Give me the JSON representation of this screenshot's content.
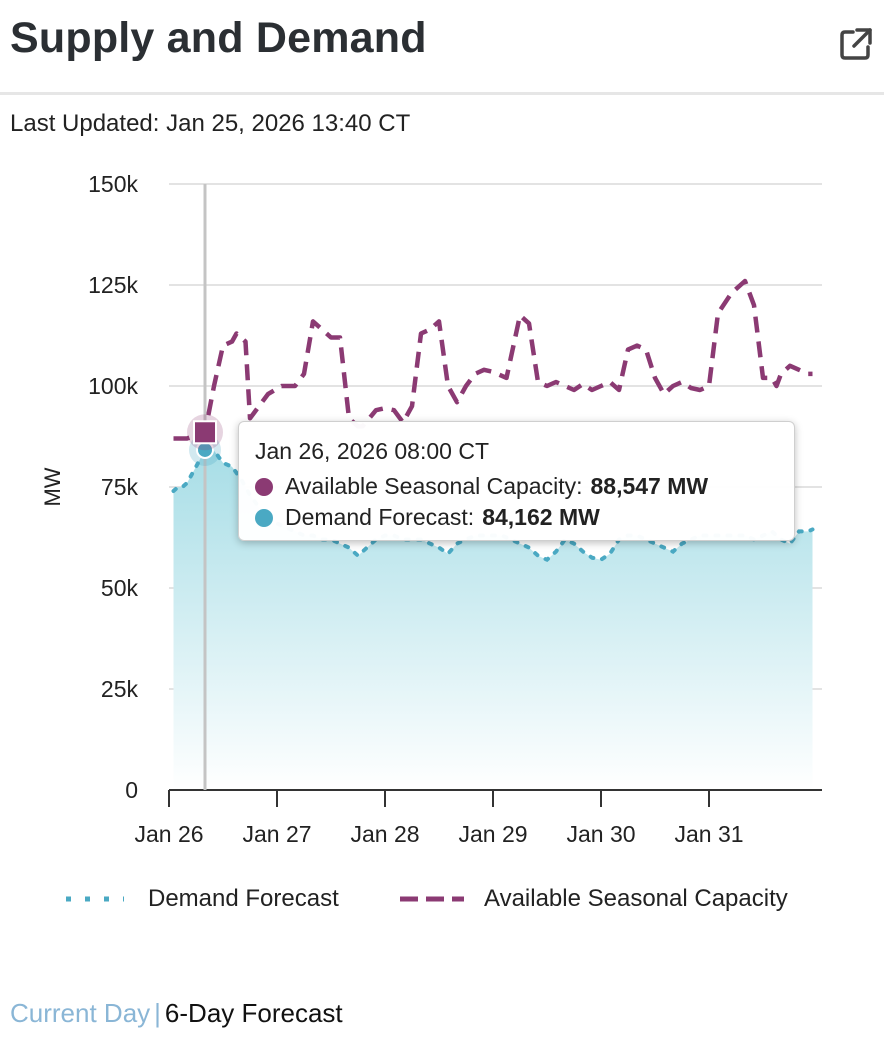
{
  "header": {
    "title": "Supply and Demand",
    "external_link_icon": "external-link-icon",
    "last_updated_label": "Last Updated: Jan 25, 2026 13:40 CT"
  },
  "colors": {
    "capacity": "#8b3a73",
    "demand": "#4aa9c3",
    "area_top": "#a6dde6",
    "link": "#8ab6d6"
  },
  "chart_data": {
    "type": "line",
    "title": "",
    "xlabel": "",
    "ylabel": "MW",
    "ylim": [
      0,
      150000
    ],
    "yticks": [
      0,
      25000,
      50000,
      75000,
      100000,
      125000,
      150000
    ],
    "ytick_labels": [
      "0",
      "25k",
      "50k",
      "75k",
      "100k",
      "125k",
      "150k"
    ],
    "xlim": [
      0,
      144
    ],
    "xticks": [
      0,
      24,
      48,
      72,
      96,
      120
    ],
    "xtick_labels": [
      "Jan 26",
      "Jan 27",
      "Jan 28",
      "Jan 29",
      "Jan 30",
      "Jan 31"
    ],
    "x_unit": "hours since Jan 26, 2026 00:00 CT",
    "crosshair_x": 8,
    "series": [
      {
        "name": "Available Seasonal Capacity",
        "style": "dashed",
        "x": [
          1,
          4,
          8,
          10,
          12,
          14,
          15,
          17,
          18,
          20,
          22,
          25,
          28,
          30,
          32,
          34,
          36,
          38,
          40,
          42,
          43,
          46,
          48,
          50,
          52,
          54,
          56,
          58,
          60,
          62,
          64,
          66,
          68,
          70,
          72,
          75,
          78,
          80,
          82,
          84,
          86,
          88,
          90,
          92,
          94,
          96,
          98,
          100,
          102,
          104,
          106,
          108,
          110,
          112,
          114,
          116,
          118,
          120,
          122,
          125,
          128,
          130,
          132,
          134,
          135,
          136,
          138,
          140,
          142,
          143
        ],
        "y": [
          87000,
          87000,
          88547,
          100000,
          110000,
          111000,
          113000,
          111000,
          92000,
          95000,
          98000,
          100000,
          100000,
          103000,
          116000,
          114000,
          112000,
          112000,
          92000,
          90000,
          90000,
          94000,
          94500,
          94000,
          91000,
          95000,
          113000,
          114000,
          116000,
          100000,
          96000,
          100000,
          103000,
          104000,
          103500,
          102000,
          117500,
          115500,
          101000,
          100000,
          101000,
          100000,
          99000,
          100500,
          99000,
          100000,
          101000,
          99000,
          109000,
          110000,
          109000,
          102000,
          98000,
          100000,
          101000,
          99500,
          99000,
          100000,
          118000,
          123000,
          126000,
          120000,
          102000,
          102000,
          100000,
          103000,
          105000,
          104000,
          103000,
          103000
        ]
      },
      {
        "name": "Demand Forecast",
        "style": "dotted",
        "filled": true,
        "x": [
          1,
          2,
          3,
          4,
          6,
          8,
          9,
          10,
          12,
          14,
          16,
          18,
          20,
          22,
          24,
          26,
          28,
          30,
          32,
          34,
          36,
          38,
          40,
          42,
          44,
          46,
          48,
          50,
          52,
          54,
          56,
          58,
          60,
          62,
          64,
          66,
          68,
          70,
          72,
          74,
          76,
          78,
          80,
          82,
          84,
          86,
          88,
          90,
          92,
          94,
          96,
          98,
          100,
          102,
          104,
          106,
          108,
          110,
          112,
          114,
          116,
          118,
          120,
          122,
          124,
          126,
          128,
          130,
          132,
          134,
          136,
          138,
          140,
          142,
          143
        ],
        "y": [
          74000,
          75000,
          75000,
          76000,
          80000,
          84162,
          85000,
          84000,
          81000,
          80000,
          77000,
          73000,
          70000,
          66000,
          66000,
          65000,
          64000,
          63000,
          63000,
          62000,
          62000,
          61000,
          60000,
          58000,
          60000,
          62000,
          63000,
          63000,
          62000,
          62000,
          62000,
          61000,
          60000,
          58500,
          61000,
          62000,
          63000,
          63000,
          63000,
          63000,
          62000,
          61000,
          60000,
          58000,
          57000,
          59000,
          62000,
          61000,
          59000,
          57500,
          57000,
          58500,
          62000,
          63000,
          63000,
          62000,
          61000,
          60000,
          59000,
          61000,
          62000,
          63000,
          63000,
          63000,
          63000,
          63000,
          63000,
          62000,
          63000,
          64000,
          62000,
          61000,
          64000,
          64000,
          64500
        ]
      }
    ],
    "legend": [
      "Demand Forecast",
      "Available Seasonal Capacity"
    ],
    "legend_position": "bottom",
    "grid": true
  },
  "tooltip": {
    "date": "Jan 26, 2026 08:00 CT",
    "capacity_label": "Available Seasonal Capacity:",
    "capacity_value": "88,547 MW",
    "demand_label": "Demand Forecast:",
    "demand_value": "84,162 MW"
  },
  "footer": {
    "current_day": "Current Day",
    "separator": "|",
    "forecast": "6-Day Forecast"
  }
}
